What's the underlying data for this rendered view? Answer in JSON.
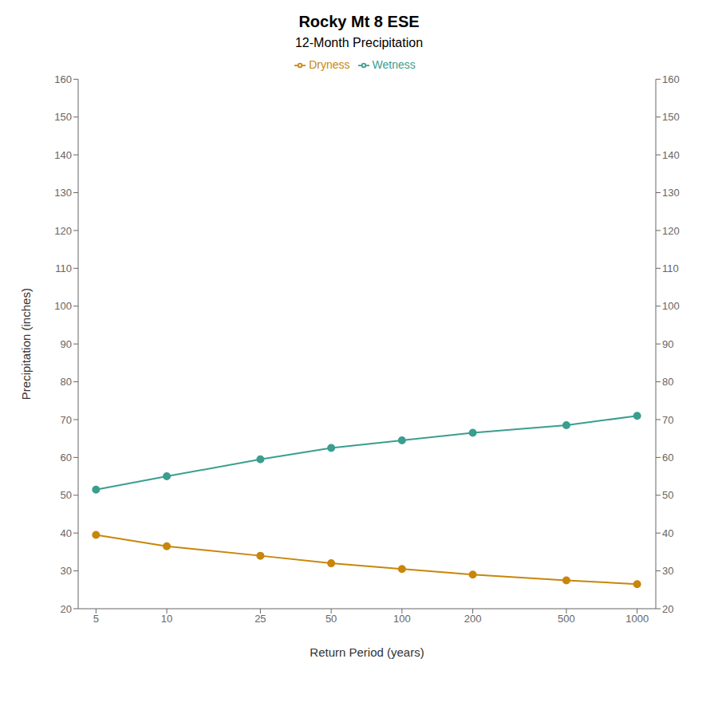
{
  "chart_data": {
    "type": "line",
    "title": "Rocky Mt 8 ESE",
    "subtitle": "12-Month Precipitation",
    "xlabel": "Return Period (years)",
    "ylabel": "Precipitation (inches)",
    "x": [
      5,
      10,
      25,
      50,
      100,
      200,
      500,
      1000
    ],
    "series": [
      {
        "name": "Dryness",
        "color": "#C8860A",
        "marker": "circle",
        "values": [
          39.5,
          36.5,
          34.0,
          32.0,
          30.5,
          29.0,
          27.5,
          26.5
        ]
      },
      {
        "name": "Wetness",
        "color": "#3A9E8F",
        "marker": "circle",
        "values": [
          51.5,
          55.0,
          59.5,
          62.5,
          64.5,
          66.5,
          68.5,
          71.0
        ]
      }
    ],
    "log": "x",
    "xlim": [
      4.2,
      1200
    ],
    "xticks": [
      5,
      10,
      25,
      50,
      100,
      200,
      500,
      1000
    ],
    "ylim": [
      20,
      160
    ],
    "yticks": [
      20,
      30,
      40,
      50,
      60,
      70,
      80,
      90,
      100,
      110,
      120,
      130,
      140,
      150,
      160
    ],
    "y2lim": [
      20,
      160
    ],
    "y2ticks": [
      20,
      30,
      40,
      50,
      60,
      70,
      80,
      90,
      100,
      110,
      120,
      130,
      140,
      150,
      160
    ],
    "grid": false,
    "legend": "top"
  }
}
